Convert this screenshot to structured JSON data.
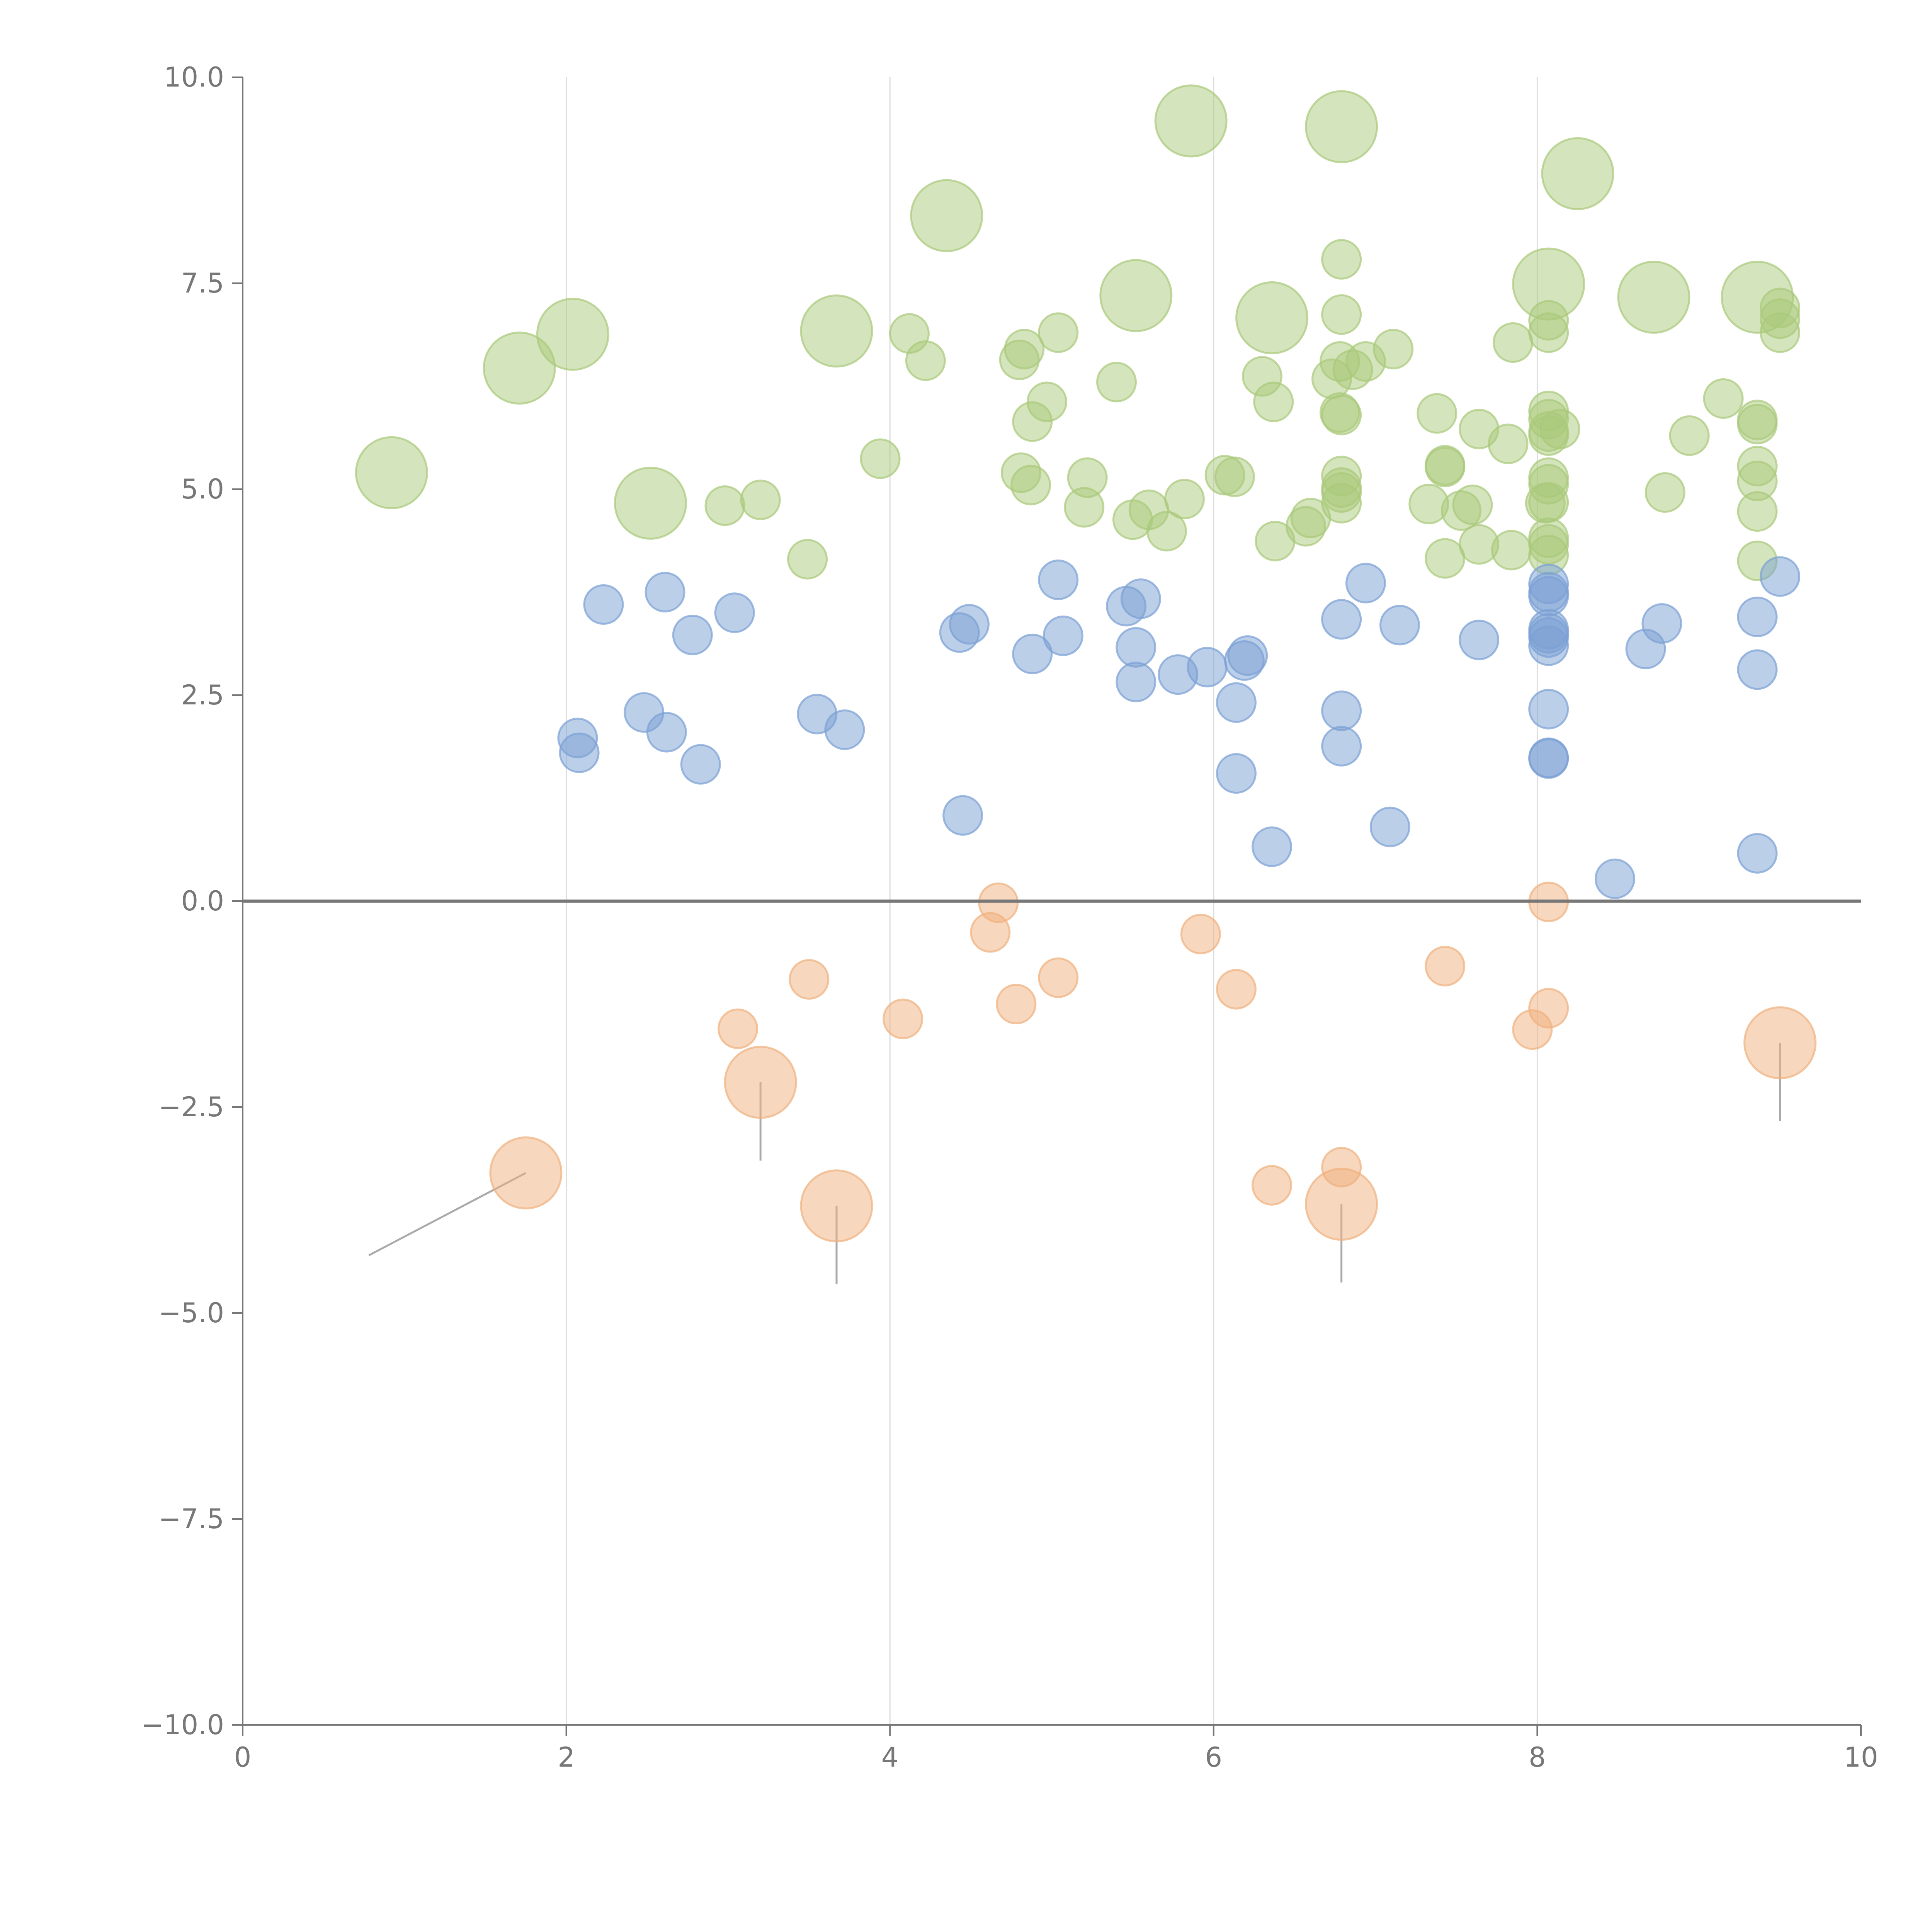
{
  "chart_data": {
    "type": "scatter",
    "title": "",
    "xlabel": "",
    "ylabel": "",
    "xlim": [
      0,
      10
    ],
    "ylim": [
      -10,
      10
    ],
    "x_ticks": [
      0,
      2,
      4,
      6,
      8,
      10
    ],
    "x_tick_labels": [
      "0",
      "2",
      "4",
      "6",
      "8",
      "10"
    ],
    "y_ticks": [
      10,
      7.5,
      5,
      2.5,
      0,
      -2.5,
      -5,
      -7.5,
      -10
    ],
    "y_tick_labels": [
      "10.0",
      "7.5",
      "5.0",
      "2.5",
      "0.0",
      "−2.5",
      "−5.0",
      "−7.5",
      "−10.0"
    ],
    "vertical_grid_at": [
      2,
      4,
      6,
      8
    ],
    "zero_line": 0,
    "colors": {
      "high": "#a9c97a",
      "mid": "#7aa0d4",
      "low": "#f0b07e",
      "axis": "#777777",
      "grid": "#dddddd"
    },
    "series": [
      {
        "name": "high",
        "points": [
          {
            "x": 0.92,
            "y": 5.2,
            "big": true
          },
          {
            "x": 1.71,
            "y": 6.47,
            "big": true
          },
          {
            "x": 2.04,
            "y": 6.88,
            "big": true
          },
          {
            "x": 2.52,
            "y": 4.83,
            "big": true
          },
          {
            "x": 3.67,
            "y": 6.92,
            "big": true
          },
          {
            "x": 4.35,
            "y": 8.32,
            "big": true
          },
          {
            "x": 5.52,
            "y": 7.35,
            "big": true
          },
          {
            "x": 5.86,
            "y": 9.47,
            "big": true
          },
          {
            "x": 6.36,
            "y": 7.08,
            "big": true
          },
          {
            "x": 6.79,
            "y": 9.4,
            "big": true
          },
          {
            "x": 8.07,
            "y": 7.49,
            "big": true
          },
          {
            "x": 8.25,
            "y": 8.83,
            "big": true
          },
          {
            "x": 8.72,
            "y": 7.33,
            "big": true
          },
          {
            "x": 9.36,
            "y": 7.33,
            "big": true
          },
          {
            "x": 2.98,
            "y": 4.8
          },
          {
            "x": 3.2,
            "y": 4.87
          },
          {
            "x": 3.49,
            "y": 4.15
          },
          {
            "x": 3.94,
            "y": 5.37
          },
          {
            "x": 4.12,
            "y": 6.89
          },
          {
            "x": 4.22,
            "y": 6.56
          },
          {
            "x": 4.8,
            "y": 6.57
          },
          {
            "x": 4.83,
            "y": 6.7
          },
          {
            "x": 4.81,
            "y": 5.2
          },
          {
            "x": 4.87,
            "y": 5.05
          },
          {
            "x": 4.88,
            "y": 5.82
          },
          {
            "x": 4.97,
            "y": 6.06
          },
          {
            "x": 5.04,
            "y": 6.9
          },
          {
            "x": 5.2,
            "y": 4.78
          },
          {
            "x": 5.22,
            "y": 5.14
          },
          {
            "x": 5.4,
            "y": 6.3
          },
          {
            "x": 5.5,
            "y": 4.63
          },
          {
            "x": 5.6,
            "y": 4.75
          },
          {
            "x": 5.71,
            "y": 4.49
          },
          {
            "x": 5.82,
            "y": 4.88
          },
          {
            "x": 6.07,
            "y": 5.17
          },
          {
            "x": 6.13,
            "y": 5.15
          },
          {
            "x": 6.3,
            "y": 6.37
          },
          {
            "x": 6.37,
            "y": 6.06
          },
          {
            "x": 6.38,
            "y": 4.37
          },
          {
            "x": 6.57,
            "y": 4.55
          },
          {
            "x": 6.6,
            "y": 4.65
          },
          {
            "x": 6.73,
            "y": 6.34
          },
          {
            "x": 6.78,
            "y": 5.93
          },
          {
            "x": 6.79,
            "y": 5.9
          },
          {
            "x": 6.78,
            "y": 6.55
          },
          {
            "x": 6.79,
            "y": 7.12
          },
          {
            "x": 6.79,
            "y": 7.79
          },
          {
            "x": 6.79,
            "y": 5.16
          },
          {
            "x": 6.79,
            "y": 5.02
          },
          {
            "x": 6.79,
            "y": 4.96
          },
          {
            "x": 6.79,
            "y": 4.83
          },
          {
            "x": 6.86,
            "y": 6.45
          },
          {
            "x": 6.94,
            "y": 6.55
          },
          {
            "x": 7.11,
            "y": 6.7
          },
          {
            "x": 7.33,
            "y": 4.82
          },
          {
            "x": 7.38,
            "y": 5.92
          },
          {
            "x": 7.43,
            "y": 5.29
          },
          {
            "x": 7.43,
            "y": 5.27
          },
          {
            "x": 7.43,
            "y": 4.16
          },
          {
            "x": 7.53,
            "y": 4.74
          },
          {
            "x": 7.6,
            "y": 4.81
          },
          {
            "x": 7.64,
            "y": 5.73
          },
          {
            "x": 7.64,
            "y": 4.33
          },
          {
            "x": 7.82,
            "y": 5.55
          },
          {
            "x": 7.84,
            "y": 4.26
          },
          {
            "x": 7.85,
            "y": 6.78
          },
          {
            "x": 8.05,
            "y": 4.83
          },
          {
            "x": 8.07,
            "y": 7.05
          },
          {
            "x": 8.07,
            "y": 6.9
          },
          {
            "x": 8.07,
            "y": 5.95
          },
          {
            "x": 8.07,
            "y": 5.85
          },
          {
            "x": 8.07,
            "y": 5.7
          },
          {
            "x": 8.07,
            "y": 5.65
          },
          {
            "x": 8.07,
            "y": 5.14
          },
          {
            "x": 8.07,
            "y": 5.06
          },
          {
            "x": 8.07,
            "y": 4.84
          },
          {
            "x": 8.07,
            "y": 4.41
          },
          {
            "x": 8.07,
            "y": 4.33
          },
          {
            "x": 8.07,
            "y": 4.2
          },
          {
            "x": 8.14,
            "y": 5.73
          },
          {
            "x": 8.79,
            "y": 4.96
          },
          {
            "x": 8.94,
            "y": 5.65
          },
          {
            "x": 9.15,
            "y": 6.1
          },
          {
            "x": 9.36,
            "y": 5.84
          },
          {
            "x": 9.36,
            "y": 5.79
          },
          {
            "x": 9.36,
            "y": 5.28
          },
          {
            "x": 9.36,
            "y": 5.1
          },
          {
            "x": 9.36,
            "y": 4.73
          },
          {
            "x": 9.36,
            "y": 4.13
          },
          {
            "x": 9.5,
            "y": 7.2
          },
          {
            "x": 9.5,
            "y": 7.07
          },
          {
            "x": 9.5,
            "y": 6.9
          }
        ]
      },
      {
        "name": "mid",
        "points": [
          {
            "x": 2.07,
            "y": 1.98
          },
          {
            "x": 2.08,
            "y": 1.8
          },
          {
            "x": 2.23,
            "y": 3.6
          },
          {
            "x": 2.48,
            "y": 2.29
          },
          {
            "x": 2.61,
            "y": 3.75
          },
          {
            "x": 2.62,
            "y": 2.05
          },
          {
            "x": 2.78,
            "y": 3.23
          },
          {
            "x": 2.83,
            "y": 1.66
          },
          {
            "x": 3.04,
            "y": 3.5
          },
          {
            "x": 3.55,
            "y": 2.27
          },
          {
            "x": 3.72,
            "y": 2.08
          },
          {
            "x": 4.43,
            "y": 3.26
          },
          {
            "x": 4.49,
            "y": 3.36
          },
          {
            "x": 4.45,
            "y": 1.04
          },
          {
            "x": 4.88,
            "y": 3.0
          },
          {
            "x": 5.04,
            "y": 3.9
          },
          {
            "x": 5.07,
            "y": 3.22
          },
          {
            "x": 5.46,
            "y": 3.58
          },
          {
            "x": 5.52,
            "y": 3.08
          },
          {
            "x": 5.52,
            "y": 2.66
          },
          {
            "x": 5.55,
            "y": 3.67
          },
          {
            "x": 5.78,
            "y": 2.75
          },
          {
            "x": 5.96,
            "y": 2.84
          },
          {
            "x": 6.14,
            "y": 2.41
          },
          {
            "x": 6.14,
            "y": 1.55
          },
          {
            "x": 6.19,
            "y": 2.92
          },
          {
            "x": 6.21,
            "y": 2.98
          },
          {
            "x": 6.36,
            "y": 0.66
          },
          {
            "x": 6.79,
            "y": 3.42
          },
          {
            "x": 6.79,
            "y": 2.31
          },
          {
            "x": 6.79,
            "y": 1.88
          },
          {
            "x": 6.94,
            "y": 3.86
          },
          {
            "x": 7.09,
            "y": 0.9
          },
          {
            "x": 7.15,
            "y": 3.35
          },
          {
            "x": 7.64,
            "y": 3.17
          },
          {
            "x": 8.07,
            "y": 3.85
          },
          {
            "x": 8.07,
            "y": 3.75
          },
          {
            "x": 8.07,
            "y": 3.7
          },
          {
            "x": 8.07,
            "y": 3.3
          },
          {
            "x": 8.07,
            "y": 3.25
          },
          {
            "x": 8.07,
            "y": 3.2
          },
          {
            "x": 8.07,
            "y": 3.1
          },
          {
            "x": 8.07,
            "y": 2.33
          },
          {
            "x": 8.07,
            "y": 1.74
          },
          {
            "x": 8.07,
            "y": 1.73
          },
          {
            "x": 8.48,
            "y": 0.27
          },
          {
            "x": 8.67,
            "y": 3.06
          },
          {
            "x": 8.77,
            "y": 3.37
          },
          {
            "x": 9.36,
            "y": 3.45
          },
          {
            "x": 9.36,
            "y": 2.81
          },
          {
            "x": 9.36,
            "y": 0.58
          },
          {
            "x": 9.5,
            "y": 3.94
          }
        ]
      },
      {
        "name": "low",
        "points": [
          {
            "x": 1.75,
            "y": -3.3,
            "big": true,
            "lx": 0.78,
            "ly": -4.3
          },
          {
            "x": 3.2,
            "y": -2.2,
            "big": true,
            "lx": 3.2,
            "ly": -3.15
          },
          {
            "x": 3.67,
            "y": -3.7,
            "big": true,
            "lx": 3.67,
            "ly": -4.65
          },
          {
            "x": 6.79,
            "y": -3.68,
            "big": true,
            "lx": 6.79,
            "ly": -4.63
          },
          {
            "x": 9.5,
            "y": -1.72,
            "big": true,
            "lx": 9.5,
            "ly": -2.67
          },
          {
            "x": 3.06,
            "y": -1.55
          },
          {
            "x": 3.5,
            "y": -0.95
          },
          {
            "x": 4.08,
            "y": -1.43
          },
          {
            "x": 4.62,
            "y": -0.38
          },
          {
            "x": 4.67,
            "y": -0.02
          },
          {
            "x": 4.78,
            "y": -1.25
          },
          {
            "x": 5.04,
            "y": -0.93
          },
          {
            "x": 5.92,
            "y": -0.4
          },
          {
            "x": 6.14,
            "y": -1.07
          },
          {
            "x": 6.36,
            "y": -3.45
          },
          {
            "x": 6.79,
            "y": -3.23
          },
          {
            "x": 7.43,
            "y": -0.79
          },
          {
            "x": 7.97,
            "y": -1.56
          },
          {
            "x": 8.07,
            "y": -1.3
          },
          {
            "x": 8.07,
            "y": -0.01
          }
        ]
      }
    ]
  }
}
